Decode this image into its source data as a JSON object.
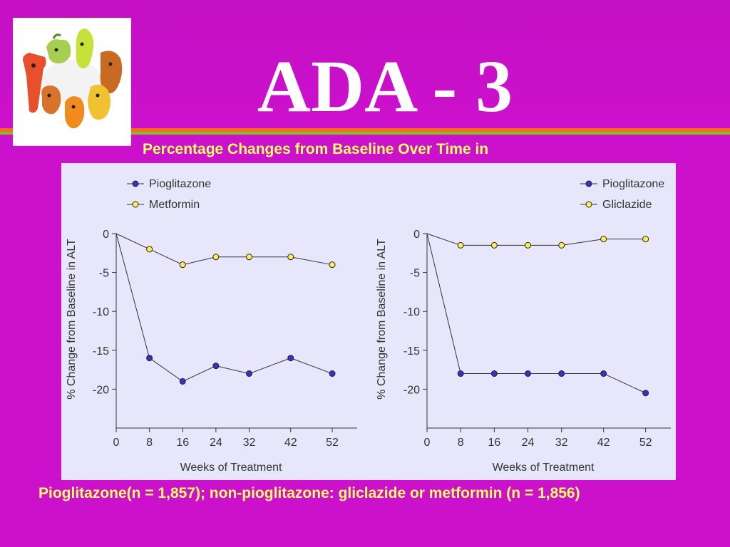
{
  "slide": {
    "title": "ADA - 3",
    "subtitle": "Percentage Changes from Baseline Over Time in",
    "footnote": "Pioglitazone(n = 1,857); non-pioglitazone: gliclazide or metformin (n = 1,856)"
  },
  "colors": {
    "background": "#cc11cc",
    "text_highlight": "#ffff66",
    "pioglitazone": "#3333cc",
    "comparator": "#ffee55"
  },
  "chart_data": [
    {
      "type": "line",
      "title": "",
      "xlabel": "Weeks of Treatment",
      "ylabel": "% Change from Baseline in ALT",
      "x_ticks": [
        0,
        8,
        16,
        24,
        32,
        42,
        52
      ],
      "y_ticks": [
        0,
        -5,
        -10,
        -15,
        -20
      ],
      "ylim": [
        -25,
        0
      ],
      "grid": false,
      "legend": "top-left",
      "series": [
        {
          "name": "Pioglitazone",
          "color": "#3333cc",
          "x": [
            0,
            8,
            16,
            24,
            32,
            42,
            52
          ],
          "y": [
            0,
            -16,
            -19,
            -17,
            -18,
            -16,
            -18
          ]
        },
        {
          "name": "Metformin",
          "color": "#ffee55",
          "x": [
            0,
            8,
            16,
            24,
            32,
            42,
            52
          ],
          "y": [
            0,
            -2,
            -4,
            -3,
            -3,
            -3,
            -4
          ]
        }
      ]
    },
    {
      "type": "line",
      "title": "",
      "xlabel": "Weeks of Treatment",
      "ylabel": "% Change from Baseline in ALT",
      "x_ticks": [
        0,
        8,
        16,
        24,
        32,
        42,
        52
      ],
      "y_ticks": [
        0,
        -5,
        -10,
        -15,
        -20
      ],
      "ylim": [
        -25,
        0
      ],
      "grid": false,
      "legend": "top-right",
      "series": [
        {
          "name": "Pioglitazone",
          "color": "#3333cc",
          "x": [
            0,
            8,
            16,
            24,
            32,
            42,
            52
          ],
          "y": [
            0,
            -18,
            -18,
            -18,
            -18,
            -18,
            -20.5
          ]
        },
        {
          "name": "Gliclazide",
          "color": "#ffee55",
          "x": [
            0,
            8,
            16,
            24,
            32,
            42,
            52
          ],
          "y": [
            0,
            -1.5,
            -1.5,
            -1.5,
            -1.5,
            -0.7,
            -0.7
          ]
        }
      ]
    }
  ]
}
